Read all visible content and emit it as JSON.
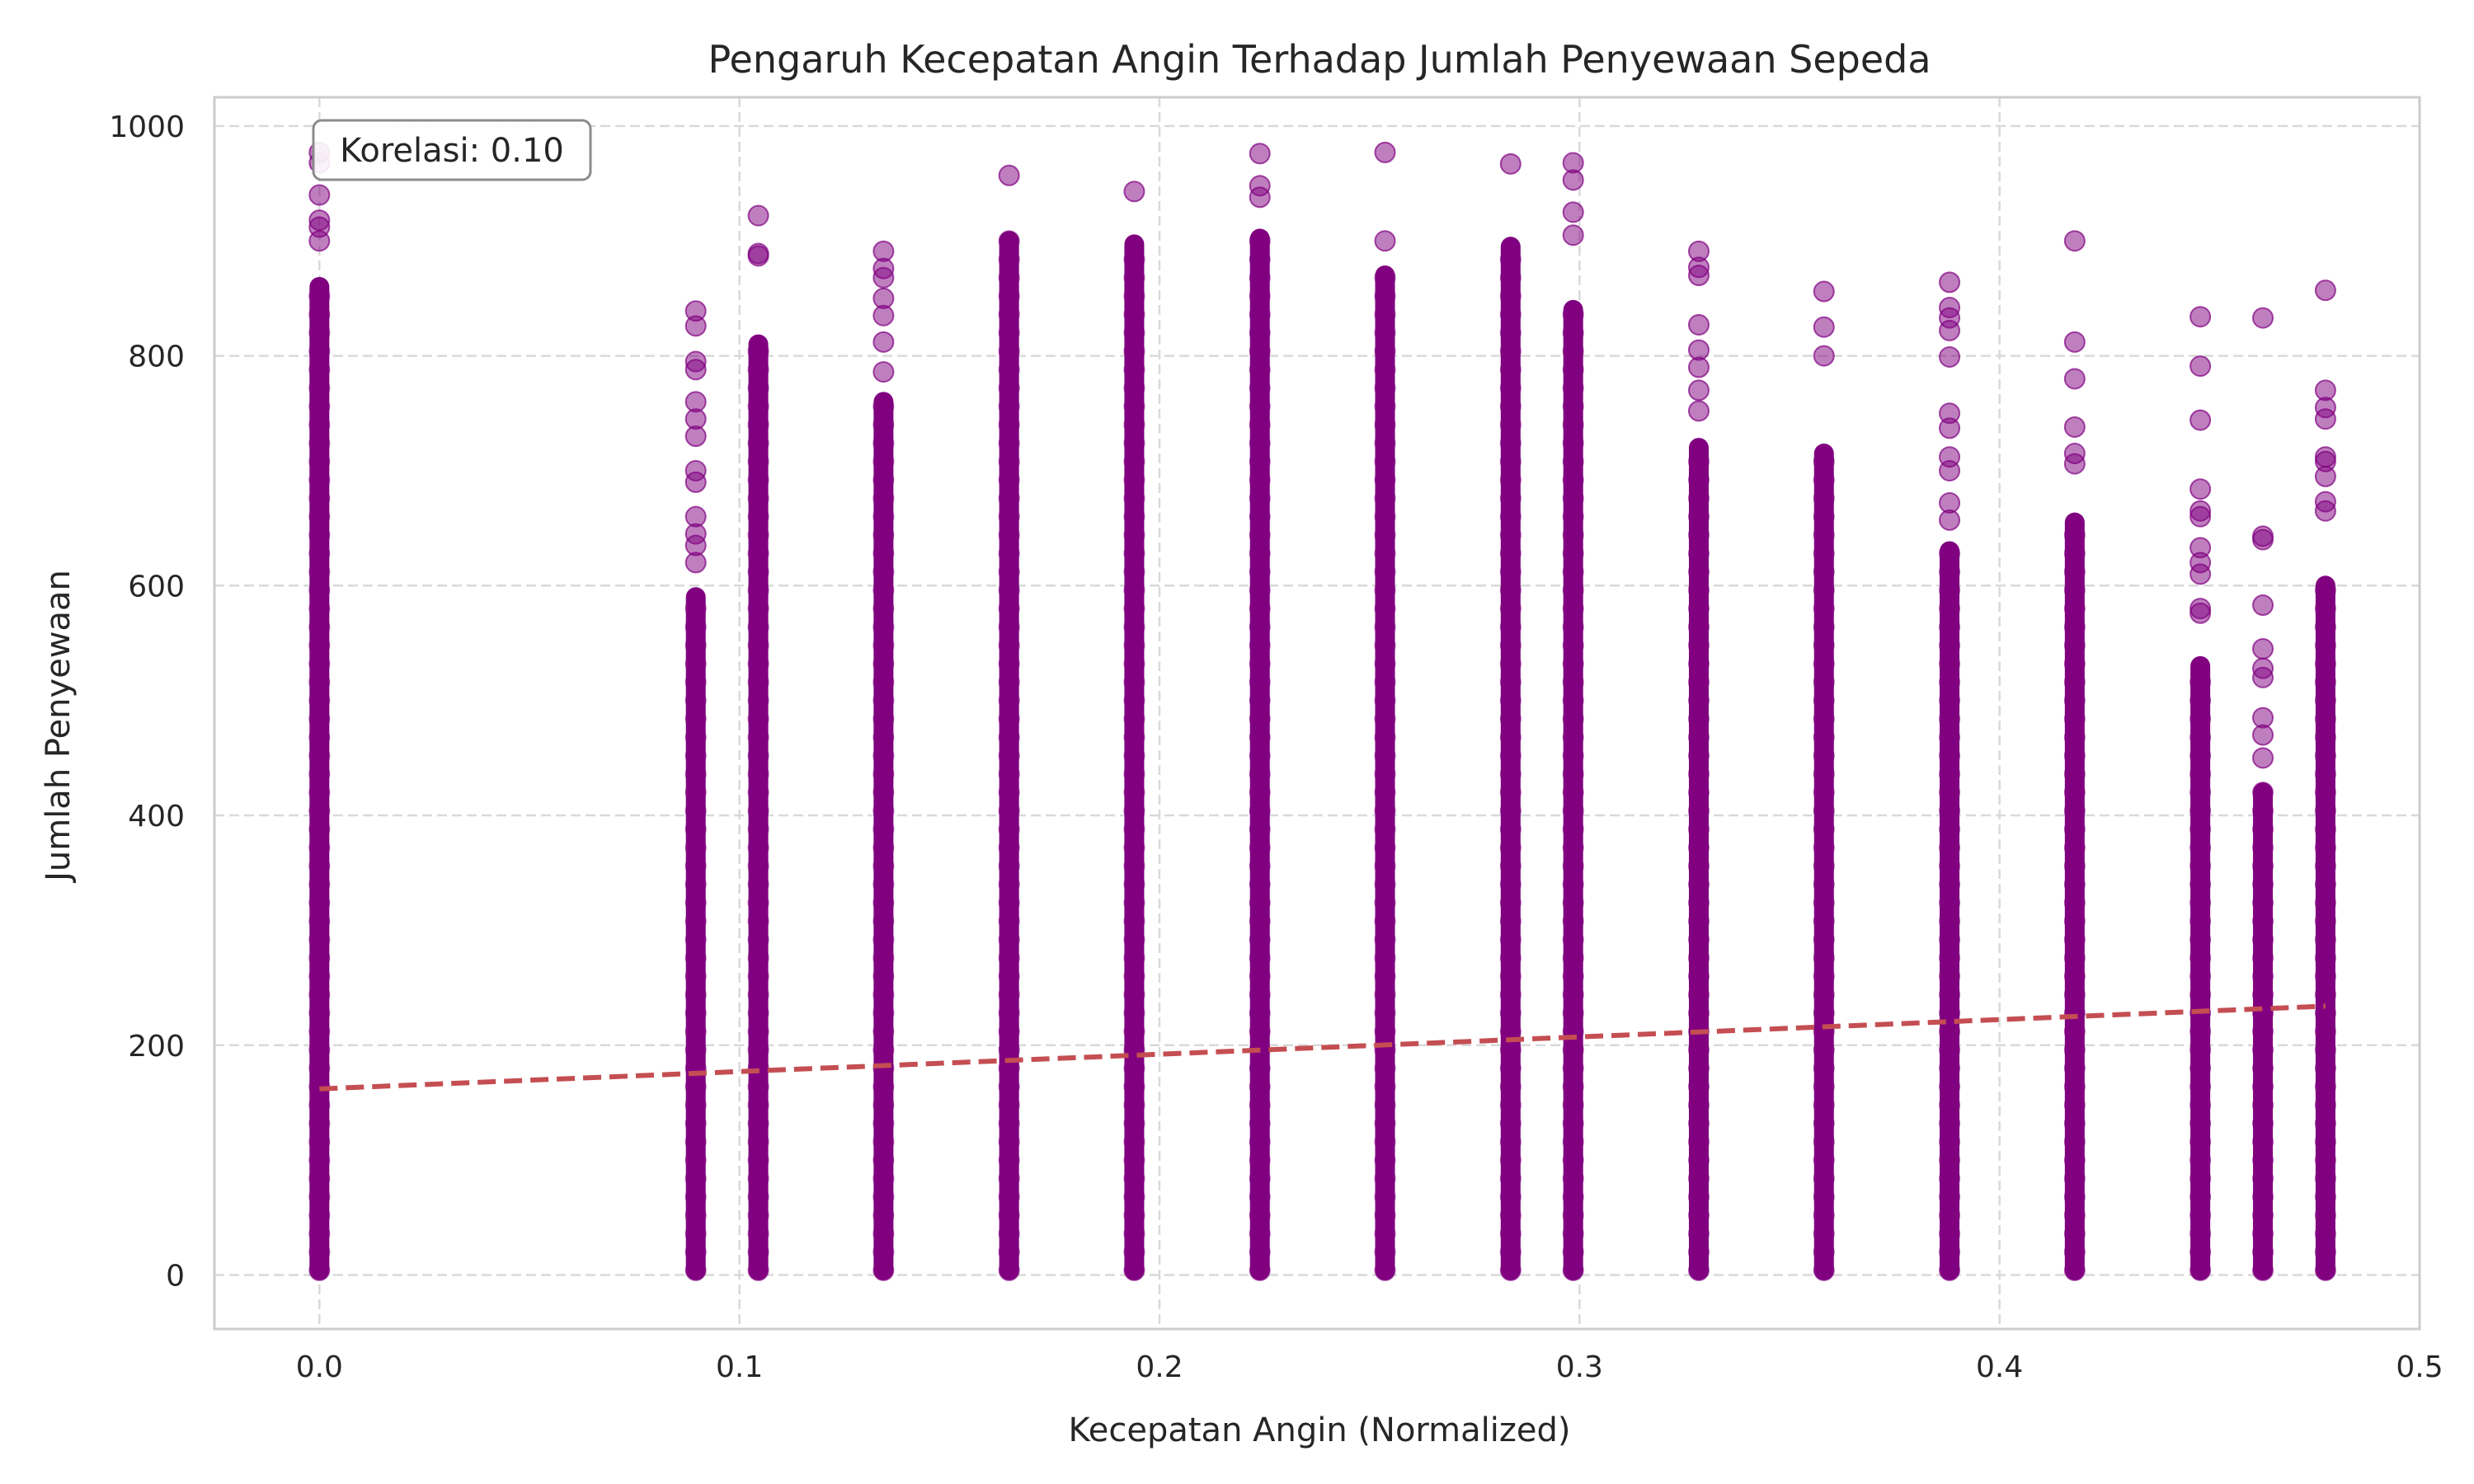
{
  "chart_data": {
    "type": "scatter",
    "title": "Pengaruh Kecepatan Angin Terhadap Jumlah Penyewaan Sepeda",
    "xlabel": "Kecepatan Angin (Normalized)",
    "ylabel": "Jumlah Penyewaan",
    "xlim": [
      -0.025,
      0.5
    ],
    "ylim": [
      -47,
      1025
    ],
    "x_ticks": [
      0.0,
      0.1,
      0.2,
      0.3,
      0.4,
      0.5
    ],
    "x_tick_labels": [
      "0.0",
      "0.1",
      "0.2",
      "0.3",
      "0.4",
      "0.5"
    ],
    "y_ticks": [
      0,
      200,
      400,
      600,
      800,
      1000
    ],
    "y_tick_labels": [
      "0",
      "200",
      "400",
      "600",
      "800",
      "1000"
    ],
    "grid": true,
    "point_color": "#800080",
    "trend_color": "#c44e52",
    "annotation": "Korelasi: 0.10",
    "wind_columns": [
      {
        "x": 0.0,
        "y_max": 977,
        "dense_top": 860,
        "outliers": [
          977,
          968,
          940,
          918,
          912,
          900
        ]
      },
      {
        "x": 0.0896,
        "y_max": 839,
        "dense_top": 590,
        "outliers": [
          839,
          826,
          795,
          788,
          760,
          745,
          730,
          700,
          690,
          660,
          645,
          635,
          620
        ]
      },
      {
        "x": 0.1045,
        "y_max": 922,
        "dense_top": 810,
        "outliers": [
          922,
          889,
          887
        ]
      },
      {
        "x": 0.1343,
        "y_max": 891,
        "dense_top": 760,
        "outliers": [
          891,
          876,
          868,
          850,
          835,
          812,
          786
        ]
      },
      {
        "x": 0.1642,
        "y_max": 957,
        "dense_top": 900,
        "outliers": [
          957
        ]
      },
      {
        "x": 0.194,
        "y_max": 943,
        "dense_top": 897,
        "outliers": [
          943
        ]
      },
      {
        "x": 0.2239,
        "y_max": 976,
        "dense_top": 902,
        "outliers": [
          976,
          948,
          938
        ]
      },
      {
        "x": 0.2537,
        "y_max": 977,
        "dense_top": 870,
        "outliers": [
          977,
          900
        ]
      },
      {
        "x": 0.2836,
        "y_max": 967,
        "dense_top": 895,
        "outliers": [
          967
        ]
      },
      {
        "x": 0.2985,
        "y_max": 968,
        "dense_top": 840,
        "outliers": [
          968,
          953,
          925,
          905
        ]
      },
      {
        "x": 0.3284,
        "y_max": 891,
        "dense_top": 720,
        "outliers": [
          891,
          877,
          870,
          827,
          805,
          790,
          770,
          752
        ]
      },
      {
        "x": 0.3582,
        "y_max": 856,
        "dense_top": 715,
        "outliers": [
          856,
          825,
          800
        ]
      },
      {
        "x": 0.3881,
        "y_max": 864,
        "dense_top": 630,
        "outliers": [
          864,
          842,
          833,
          822,
          799,
          750,
          737,
          712,
          700,
          672,
          657
        ]
      },
      {
        "x": 0.4179,
        "y_max": 900,
        "dense_top": 655,
        "outliers": [
          900,
          812,
          780,
          738,
          715,
          706
        ]
      },
      {
        "x": 0.4478,
        "y_max": 834,
        "dense_top": 530,
        "outliers": [
          834,
          791,
          744,
          684,
          665,
          660,
          633,
          620,
          610,
          580,
          576
        ]
      },
      {
        "x": 0.4627,
        "y_max": 833,
        "dense_top": 420,
        "outliers": [
          833,
          643,
          640,
          583,
          545,
          528,
          520,
          485,
          470,
          450
        ]
      },
      {
        "x": 0.4776,
        "y_max": 857,
        "dense_top": 600,
        "outliers": [
          857,
          770,
          755,
          745,
          712,
          708,
          695,
          673,
          665
        ]
      }
    ],
    "trend_line": {
      "x": [
        0.0,
        0.4776
      ],
      "y": [
        162,
        234
      ]
    }
  }
}
